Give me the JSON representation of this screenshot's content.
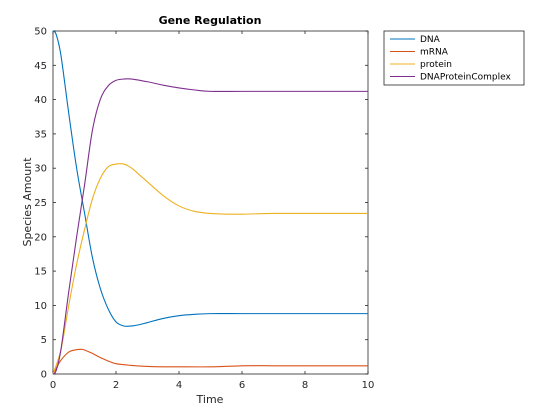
{
  "chart_data": {
    "type": "line",
    "title": "Gene Regulation",
    "xlabel": "Time",
    "ylabel": "Species Amount",
    "xlim": [
      0,
      10
    ],
    "ylim": [
      0,
      50
    ],
    "xticks": [
      0,
      2,
      4,
      6,
      8,
      10
    ],
    "yticks": [
      0,
      5,
      10,
      15,
      20,
      25,
      30,
      35,
      40,
      45,
      50
    ],
    "grid": false,
    "legend_position": "outside-top-right",
    "series": [
      {
        "name": "DNA",
        "color": "#0072bd",
        "x": [
          0,
          0.1,
          0.25,
          0.5,
          0.75,
          1.0,
          1.25,
          1.5,
          1.75,
          2.0,
          2.25,
          2.5,
          2.75,
          3.0,
          3.5,
          4.0,
          4.5,
          5.0,
          6.0,
          7.0,
          8.0,
          9.0,
          10.0
        ],
        "values": [
          50,
          49.5,
          46.5,
          38,
          30,
          23.5,
          17,
          12.5,
          9.5,
          7.6,
          7.0,
          7.0,
          7.2,
          7.5,
          8.1,
          8.5,
          8.7,
          8.8,
          8.8,
          8.8,
          8.8,
          8.8,
          8.8
        ]
      },
      {
        "name": "mRNA",
        "color": "#d95319",
        "x": [
          0,
          0.1,
          0.25,
          0.5,
          0.75,
          0.9,
          1.0,
          1.25,
          1.5,
          1.75,
          2.0,
          2.5,
          3.0,
          3.5,
          4.0,
          5.0,
          6.0,
          7.0,
          8.0,
          9.0,
          10.0
        ],
        "values": [
          0,
          0.8,
          2.0,
          3.2,
          3.55,
          3.6,
          3.5,
          3.0,
          2.4,
          1.9,
          1.5,
          1.25,
          1.1,
          1.05,
          1.05,
          1.05,
          1.2,
          1.2,
          1.2,
          1.2,
          1.2
        ]
      },
      {
        "name": "protein",
        "color": "#edb120",
        "x": [
          0,
          0.25,
          0.5,
          0.75,
          1.0,
          1.25,
          1.5,
          1.75,
          2.0,
          2.25,
          2.5,
          2.75,
          3.0,
          3.5,
          4.0,
          4.5,
          5.0,
          5.5,
          6.0,
          7.0,
          8.0,
          9.0,
          10.0
        ],
        "values": [
          0,
          3.5,
          10,
          16,
          21,
          25.5,
          28.5,
          30.2,
          30.6,
          30.6,
          30.0,
          29.0,
          28.0,
          26.0,
          24.5,
          23.7,
          23.4,
          23.3,
          23.3,
          23.4,
          23.4,
          23.4,
          23.4
        ]
      },
      {
        "name": "DNAProteinComplex",
        "color": "#7e2f8e",
        "x": [
          0,
          0.1,
          0.25,
          0.5,
          0.75,
          1.0,
          1.25,
          1.5,
          1.75,
          2.0,
          2.25,
          2.5,
          3.0,
          3.5,
          4.0,
          4.5,
          5.0,
          6.0,
          7.0,
          8.0,
          9.0,
          10.0
        ],
        "values": [
          0,
          0.5,
          3.5,
          12,
          20,
          27.5,
          35.5,
          40.0,
          42.0,
          42.8,
          43.0,
          43.0,
          42.6,
          42.1,
          41.7,
          41.4,
          41.2,
          41.2,
          41.2,
          41.2,
          41.2,
          41.2
        ]
      }
    ]
  }
}
